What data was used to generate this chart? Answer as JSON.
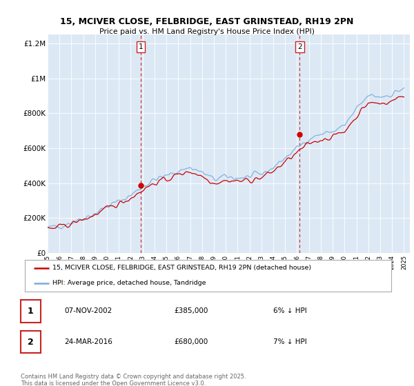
{
  "title1": "15, MCIVER CLOSE, FELBRIDGE, EAST GRINSTEAD, RH19 2PN",
  "title2": "Price paid vs. HM Land Registry's House Price Index (HPI)",
  "ylim": [
    0,
    1250000
  ],
  "yticks": [
    0,
    200000,
    400000,
    600000,
    800000,
    1000000,
    1200000
  ],
  "ytick_labels": [
    "£0",
    "£200K",
    "£400K",
    "£600K",
    "£800K",
    "£1M",
    "£1.2M"
  ],
  "bg_color": "#dce9f5",
  "line1_color": "#cc0000",
  "line2_color": "#7aabdb",
  "sale1_date": "07-NOV-2002",
  "sale1_price": 385000,
  "sale1_pct": "6% ↓ HPI",
  "sale2_date": "24-MAR-2016",
  "sale2_price": 680000,
  "sale2_pct": "7% ↓ HPI",
  "legend1": "15, MCIVER CLOSE, FELBRIDGE, EAST GRINSTEAD, RH19 2PN (detached house)",
  "legend2": "HPI: Average price, detached house, Tandridge",
  "footer": "Contains HM Land Registry data © Crown copyright and database right 2025.\nThis data is licensed under the Open Government Licence v3.0.",
  "vline1_x": 2002.85,
  "vline2_x": 2016.23,
  "sale1_value": 385000,
  "sale2_value": 680000,
  "xmin": 1995.0,
  "xmax": 2025.5
}
